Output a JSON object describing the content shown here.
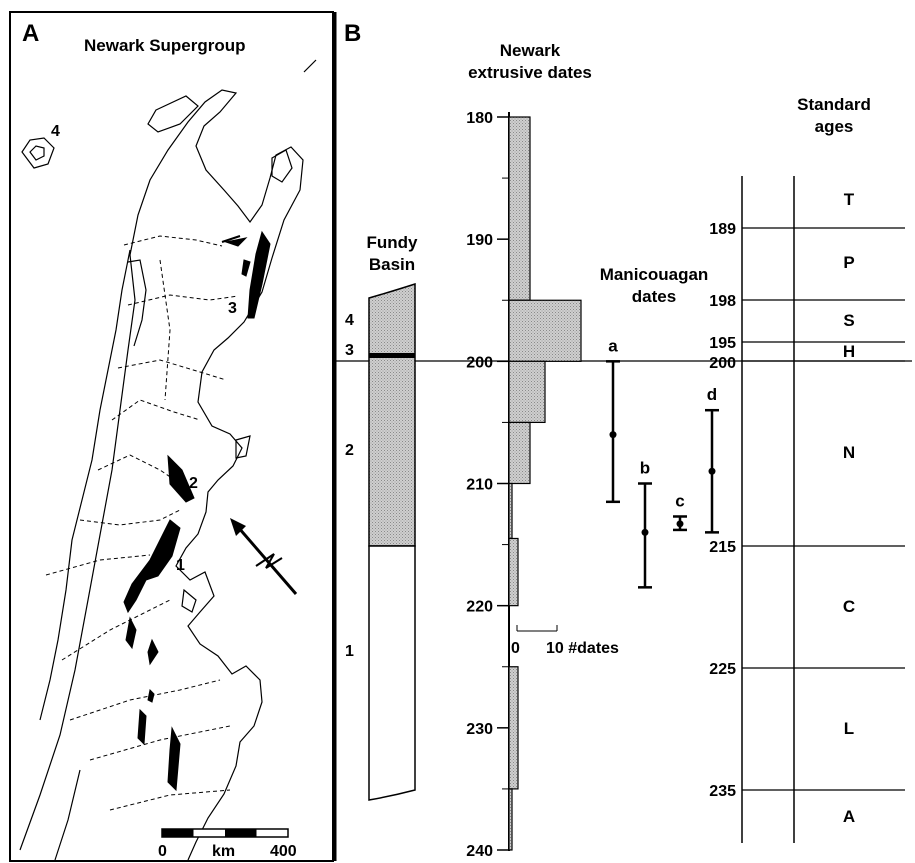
{
  "panel_a": {
    "letter": "A",
    "title": "Newark Supergroup",
    "basin_labels": [
      "1",
      "2",
      "3",
      "4"
    ],
    "scale_bar": {
      "start": "0",
      "unit": "km",
      "end": "400"
    }
  },
  "panel_b": {
    "letter": "B",
    "fundy": {
      "title_line1": "Fundy",
      "title_line2": "Basin",
      "units": [
        {
          "label": "4",
          "shaded": true
        },
        {
          "label": "3",
          "shaded": true
        },
        {
          "label": "2",
          "shaded": true
        },
        {
          "label": "1",
          "shaded": false
        }
      ]
    },
    "newark": {
      "title_line1": "Newark",
      "title_line2": "extrusive dates",
      "axis_ticks": [
        180,
        190,
        200,
        210,
        220,
        230,
        240
      ],
      "histogram_bins": [
        {
          "from": 180,
          "to": 195,
          "count": 7
        },
        {
          "from": 195,
          "to": 200,
          "count": 24
        },
        {
          "from": 200,
          "to": 205,
          "count": 12
        },
        {
          "from": 205,
          "to": 210,
          "count": 7
        },
        {
          "from": 210,
          "to": 214.5,
          "count": 1
        },
        {
          "from": 214.5,
          "to": 220,
          "count": 3
        },
        {
          "from": 225,
          "to": 235,
          "count": 3
        },
        {
          "from": 235,
          "to": 240,
          "count": 1
        }
      ],
      "scale_zero": "0",
      "scale_text": "10 #dates"
    },
    "manicouagan": {
      "title_line1": "Manicouagan",
      "title_line2": "dates",
      "dates": [
        {
          "label": "a",
          "center": 206,
          "low": 200,
          "high": 211.5
        },
        {
          "label": "b",
          "center": 214,
          "low": 210,
          "high": 218.5
        },
        {
          "label": "c",
          "center": 213.3,
          "low": 212.7,
          "high": 213.8
        },
        {
          "label": "d",
          "center": 209,
          "low": 204,
          "high": 214
        }
      ]
    },
    "standard_ages": {
      "title_line1": "Standard",
      "title_line2": "ages",
      "boundaries": [
        "189",
        "198",
        "195",
        "200",
        "215",
        "225",
        "235"
      ],
      "stages": [
        "T",
        "P",
        "S",
        "H",
        "N",
        "C",
        "L",
        "A"
      ]
    }
  }
}
